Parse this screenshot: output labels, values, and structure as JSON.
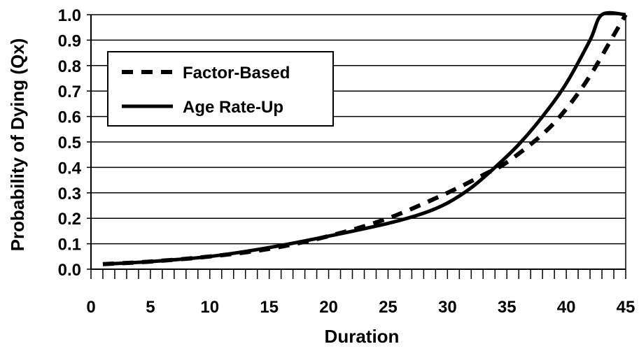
{
  "chart_data": {
    "type": "line",
    "title": "",
    "xlabel": "Duration",
    "ylabel": "Probability of Dying (Qx)",
    "xlim": [
      0,
      45
    ],
    "ylim": [
      0,
      1.0
    ],
    "xticks": [
      "0",
      "5",
      "10",
      "15",
      "20",
      "25",
      "30",
      "35",
      "40",
      "45"
    ],
    "yticks": [
      "0.0",
      "0.1",
      "0.2",
      "0.3",
      "0.4",
      "0.5",
      "0.6",
      "0.7",
      "0.8",
      "0.9",
      "1.0"
    ],
    "grid": "horizontal",
    "legend_position": "top-left",
    "series": [
      {
        "name": "Factor-Based",
        "style": "dashed",
        "color": "#000000",
        "x": [
          1,
          5,
          10,
          15,
          20,
          25,
          30,
          33,
          35,
          38,
          40,
          42,
          44,
          45
        ],
        "y": [
          0.02,
          0.03,
          0.05,
          0.08,
          0.13,
          0.2,
          0.3,
          0.37,
          0.42,
          0.53,
          0.63,
          0.76,
          0.92,
          1.0
        ]
      },
      {
        "name": "Age Rate-Up",
        "style": "solid",
        "color": "#000000",
        "x": [
          1,
          5,
          10,
          15,
          20,
          25,
          28,
          30,
          32,
          34,
          36,
          38,
          40,
          42,
          43,
          45
        ],
        "y": [
          0.02,
          0.03,
          0.05,
          0.085,
          0.13,
          0.18,
          0.22,
          0.26,
          0.32,
          0.4,
          0.49,
          0.6,
          0.73,
          0.9,
          1.0,
          1.0
        ]
      }
    ]
  }
}
